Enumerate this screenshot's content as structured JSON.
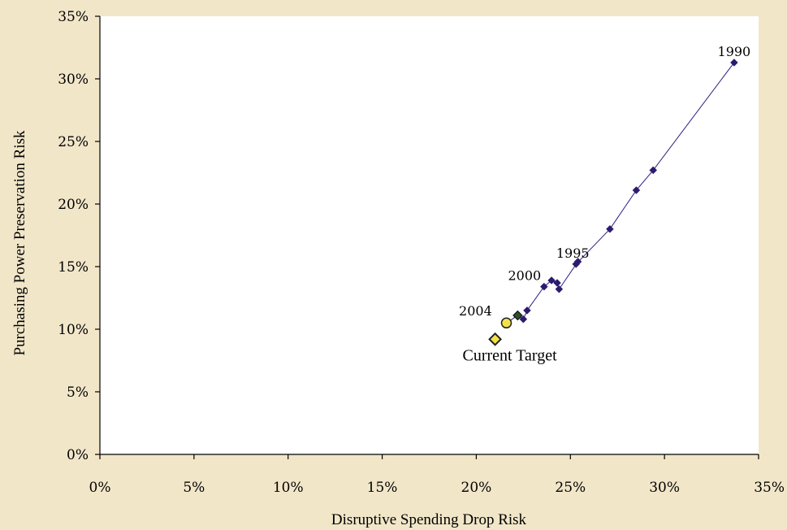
{
  "chart_data": {
    "type": "scatter",
    "title": "",
    "xlabel": "Disruptive Spending Drop Risk",
    "ylabel": "Purchasing Power Preservation Risk",
    "xlim": [
      0,
      35
    ],
    "ylim": [
      0,
      35
    ],
    "x_ticks": [
      "0%",
      "5%",
      "10%",
      "15%",
      "20%",
      "25%",
      "30%",
      "35%"
    ],
    "y_ticks": [
      "0%",
      "5%",
      "10%",
      "15%",
      "20%",
      "25%",
      "30%",
      "35%"
    ],
    "grid": false,
    "legend": "none",
    "colors": {
      "series_line": "#2B2080",
      "series_marker": "#2E1A6E",
      "highlight_fill": "#F4E14A",
      "highlight_edge": "#222222",
      "marker_2004_fill": "#2F4F2F",
      "plot_bg": "#FFFFFF",
      "page_bg": "#F2E6C9"
    },
    "series": [
      {
        "points": [
          {
            "x": 33.7,
            "y": 31.3
          },
          {
            "x": 29.4,
            "y": 22.7
          },
          {
            "x": 28.5,
            "y": 21.1
          },
          {
            "x": 27.1,
            "y": 18.0
          },
          {
            "x": 25.3,
            "y": 15.2
          },
          {
            "x": 25.4,
            "y": 15.4
          },
          {
            "x": 24.4,
            "y": 13.2
          },
          {
            "x": 24.3,
            "y": 13.7
          },
          {
            "x": 24.0,
            "y": 13.9
          },
          {
            "x": 23.6,
            "y": 13.4
          },
          {
            "x": 22.7,
            "y": 11.5
          },
          {
            "x": 22.5,
            "y": 10.8
          },
          {
            "x": 22.2,
            "y": 11.1
          },
          {
            "x": 21.6,
            "y": 10.5
          }
        ]
      }
    ],
    "highlights": [
      {
        "name": "Current Target",
        "x": 21.0,
        "y": 9.2,
        "shape": "diamond"
      },
      {
        "name": "current",
        "x": 21.6,
        "y": 10.5,
        "shape": "circle"
      },
      {
        "name": "2004",
        "x": 22.2,
        "y": 11.1,
        "shape": "diamond-dark"
      }
    ],
    "annotations": [
      {
        "text": "1990",
        "x": 33.7,
        "y": 31.3
      },
      {
        "text": "1995",
        "x": 25.3,
        "y": 15.2
      },
      {
        "text": "2000",
        "x": 23.6,
        "y": 13.4
      },
      {
        "text": "2004",
        "x": 22.2,
        "y": 11.1
      },
      {
        "text": "Current Target",
        "x": 21.0,
        "y": 9.2
      }
    ]
  }
}
